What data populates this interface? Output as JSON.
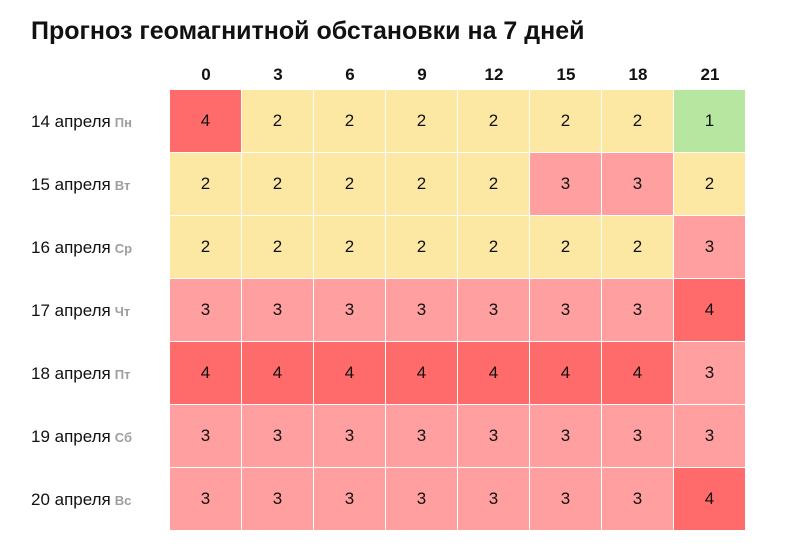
{
  "title": "Прогноз геомагнитной обстановки на 7 дней",
  "hours": [
    "0",
    "3",
    "6",
    "9",
    "12",
    "15",
    "18",
    "21"
  ],
  "days": [
    {
      "date": "14 апреля",
      "weekday": "Пн",
      "values": [
        4,
        2,
        2,
        2,
        2,
        2,
        2,
        1
      ]
    },
    {
      "date": "15 апреля",
      "weekday": "Вт",
      "values": [
        2,
        2,
        2,
        2,
        2,
        3,
        3,
        2
      ]
    },
    {
      "date": "16 апреля",
      "weekday": "Ср",
      "values": [
        2,
        2,
        2,
        2,
        2,
        2,
        2,
        3
      ]
    },
    {
      "date": "17 апреля",
      "weekday": "Чт",
      "values": [
        3,
        3,
        3,
        3,
        3,
        3,
        3,
        4
      ]
    },
    {
      "date": "18 апреля",
      "weekday": "Пт",
      "values": [
        4,
        4,
        4,
        4,
        4,
        4,
        4,
        3
      ]
    },
    {
      "date": "19 апреля",
      "weekday": "Сб",
      "values": [
        3,
        3,
        3,
        3,
        3,
        3,
        3,
        3
      ]
    },
    {
      "date": "20 апреля",
      "weekday": "Вс",
      "values": [
        3,
        3,
        3,
        3,
        3,
        3,
        3,
        4
      ]
    }
  ],
  "level_colors": {
    "1": "#b7e6a0",
    "2": "#fde8a3",
    "3": "#ff9f9f",
    "4": "#ff6b6b"
  }
}
